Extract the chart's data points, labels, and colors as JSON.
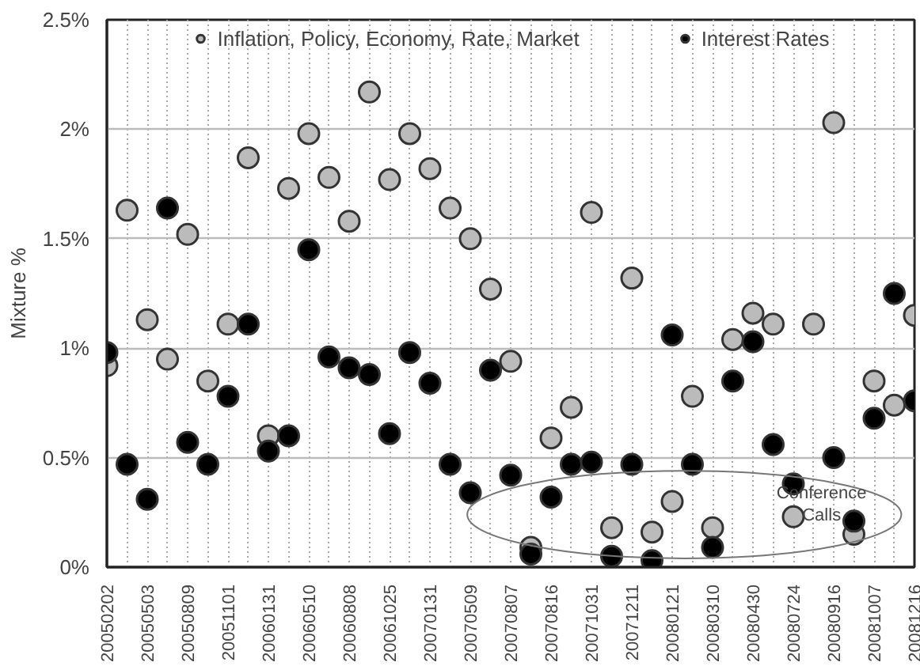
{
  "chart_data": {
    "type": "scatter",
    "ylabel": "Mixture %",
    "categories": [
      "20050202",
      null,
      "20050503",
      null,
      "20050809",
      null,
      "20051101",
      null,
      "20060131",
      null,
      "20060510",
      null,
      "20060808",
      null,
      "20061025",
      null,
      "20070131",
      null,
      "20070509",
      null,
      "20070807",
      null,
      "20070816",
      null,
      "20071031",
      null,
      "20071211",
      null,
      "20080121",
      null,
      "20080310",
      null,
      "20080430",
      null,
      "20080724",
      null,
      "20080916",
      null,
      "20081007",
      null,
      "20081216"
    ],
    "series": [
      {
        "name": "Inflation, Policy, Economy, Rate, Market",
        "color": "#bbbbbb",
        "values": [
          0.92,
          1.63,
          1.13,
          0.95,
          1.52,
          0.85,
          1.11,
          1.87,
          0.6,
          1.73,
          1.98,
          1.78,
          1.58,
          2.17,
          1.77,
          1.98,
          1.82,
          1.64,
          1.5,
          1.27,
          0.94,
          0.09,
          0.59,
          0.73,
          1.62,
          0.18,
          1.32,
          0.16,
          0.3,
          0.78,
          0.18,
          1.04,
          1.16,
          1.11,
          0.23,
          1.11,
          2.03,
          0.15,
          0.85,
          0.74,
          1.15
        ]
      },
      {
        "name": "Interest Rates",
        "color": "#000000",
        "values": [
          0.98,
          0.47,
          0.31,
          1.64,
          0.57,
          0.47,
          0.78,
          1.11,
          0.53,
          0.6,
          1.45,
          0.96,
          0.91,
          0.88,
          0.61,
          0.98,
          0.84,
          0.47,
          0.34,
          0.9,
          0.42,
          0.06,
          0.32,
          0.47,
          0.48,
          0.05,
          0.47,
          0.03,
          1.06,
          0.47,
          0.09,
          0.85,
          1.03,
          0.56,
          0.38,
          null,
          0.5,
          0.21,
          0.68,
          1.25,
          0.76
        ]
      }
    ],
    "ylim": [
      0,
      2.5
    ],
    "yticks": [
      {
        "value": 0,
        "label": "0%"
      },
      {
        "value": 0.5,
        "label": "0.5%"
      },
      {
        "value": 1,
        "label": "1%"
      },
      {
        "value": 1.5,
        "label": "1.5%"
      },
      {
        "value": 2,
        "label": "2%"
      },
      {
        "value": 2.5,
        "label": "2.5%"
      }
    ],
    "grid": true,
    "legend": "top",
    "marker": "circle",
    "annotations": [
      "Conference Calls"
    ]
  }
}
